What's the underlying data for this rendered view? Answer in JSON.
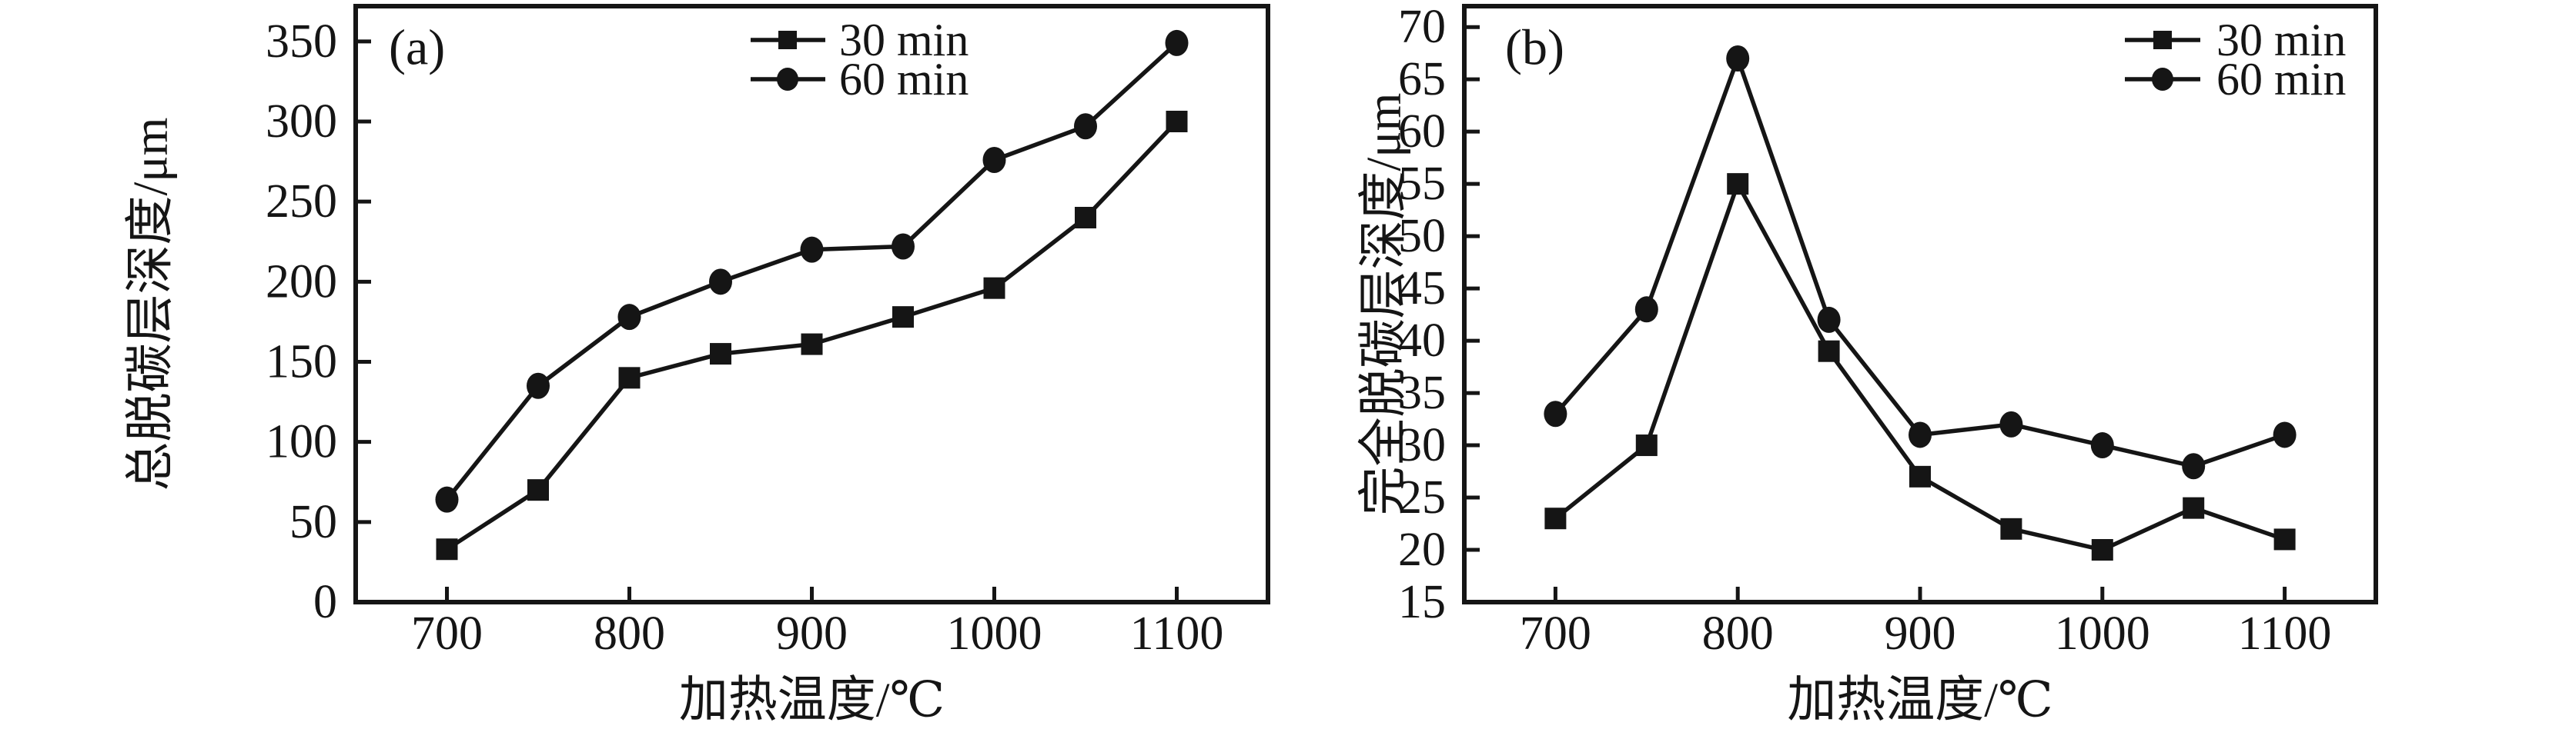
{
  "figure": {
    "background": "#ffffff",
    "ink_color": "#151515",
    "description_visible_text_only": true
  },
  "chart_data": [
    {
      "type": "line",
      "panel_label": "(a)",
      "xlabel": "加热温度/℃",
      "ylabel": "总脱碳层深度/μm",
      "x": [
        700,
        750,
        800,
        850,
        900,
        950,
        1000,
        1050,
        1100
      ],
      "series": [
        {
          "name": "30 min",
          "marker": "square",
          "color": "#151515",
          "values": [
            33,
            70,
            140,
            155,
            161,
            178,
            196,
            240,
            300
          ]
        },
        {
          "name": "60 min",
          "marker": "circle",
          "color": "#151515",
          "values": [
            64,
            135,
            178,
            200,
            220,
            222,
            276,
            297,
            349
          ]
        }
      ],
      "xlim": [
        650,
        1150
      ],
      "ylim": [
        0,
        372
      ],
      "xticks": [
        700,
        800,
        900,
        1000,
        1100
      ],
      "yticks": [
        0,
        50,
        100,
        150,
        200,
        250,
        300,
        350
      ],
      "grid": false,
      "legend_position": "top-center"
    },
    {
      "type": "line",
      "panel_label": "(b)",
      "xlabel": "加热温度/℃",
      "ylabel": "完全脱碳层深度/μm",
      "x": [
        700,
        750,
        800,
        850,
        900,
        950,
        1000,
        1050,
        1100
      ],
      "series": [
        {
          "name": "30 min",
          "marker": "square",
          "color": "#151515",
          "values": [
            23,
            30,
            55,
            39,
            27,
            22,
            20,
            24,
            21
          ]
        },
        {
          "name": "60 min",
          "marker": "circle",
          "color": "#151515",
          "values": [
            33,
            43,
            67,
            42,
            31,
            32,
            30,
            28,
            31
          ]
        }
      ],
      "xlim": [
        650,
        1150
      ],
      "ylim": [
        15,
        72
      ],
      "xticks": [
        700,
        800,
        900,
        1000,
        1100
      ],
      "yticks": [
        15,
        20,
        25,
        30,
        35,
        40,
        45,
        50,
        55,
        60,
        65,
        70
      ],
      "grid": false,
      "legend_position": "top-right"
    }
  ]
}
